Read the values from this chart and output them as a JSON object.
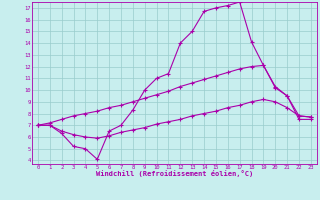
{
  "xlabel": "Windchill (Refroidissement éolien,°C)",
  "xlim_min": -0.5,
  "xlim_max": 23.5,
  "ylim_min": 3.7,
  "ylim_max": 17.5,
  "xticks": [
    0,
    1,
    2,
    3,
    4,
    5,
    6,
    7,
    8,
    9,
    10,
    11,
    12,
    13,
    14,
    15,
    16,
    17,
    18,
    19,
    20,
    21,
    22,
    23
  ],
  "yticks": [
    4,
    5,
    6,
    7,
    8,
    9,
    10,
    11,
    12,
    13,
    14,
    15,
    16,
    17
  ],
  "bg_color": "#c8eeee",
  "line_color": "#aa00aa",
  "grid_color": "#99cccc",
  "line1_x": [
    0,
    1,
    2,
    3,
    4,
    5,
    6,
    7,
    8,
    9,
    10,
    11,
    12,
    13,
    14,
    15,
    16,
    17,
    18,
    19,
    20,
    21,
    22,
    23
  ],
  "line1_y": [
    7.0,
    7.0,
    6.3,
    5.2,
    5.0,
    4.1,
    6.5,
    7.0,
    8.3,
    10.0,
    11.0,
    11.4,
    14.0,
    15.0,
    16.7,
    17.0,
    17.2,
    17.5,
    14.1,
    12.1,
    10.3,
    9.5,
    7.5,
    7.5
  ],
  "line2_x": [
    0,
    1,
    2,
    3,
    4,
    5,
    6,
    7,
    8,
    9,
    10,
    11,
    12,
    13,
    14,
    15,
    16,
    17,
    18,
    19,
    20,
    21,
    22,
    23
  ],
  "line2_y": [
    7.0,
    7.2,
    7.5,
    7.8,
    8.0,
    8.2,
    8.5,
    8.7,
    9.0,
    9.3,
    9.6,
    9.9,
    10.3,
    10.6,
    10.9,
    11.2,
    11.5,
    11.8,
    12.0,
    12.1,
    10.2,
    9.5,
    7.8,
    7.7
  ],
  "line3_x": [
    0,
    1,
    2,
    3,
    4,
    5,
    6,
    7,
    8,
    9,
    10,
    11,
    12,
    13,
    14,
    15,
    16,
    17,
    18,
    19,
    20,
    21,
    22,
    23
  ],
  "line3_y": [
    7.0,
    7.0,
    6.5,
    6.2,
    6.0,
    5.9,
    6.1,
    6.4,
    6.6,
    6.8,
    7.1,
    7.3,
    7.5,
    7.8,
    8.0,
    8.2,
    8.5,
    8.7,
    9.0,
    9.2,
    9.0,
    8.5,
    7.8,
    7.7
  ]
}
